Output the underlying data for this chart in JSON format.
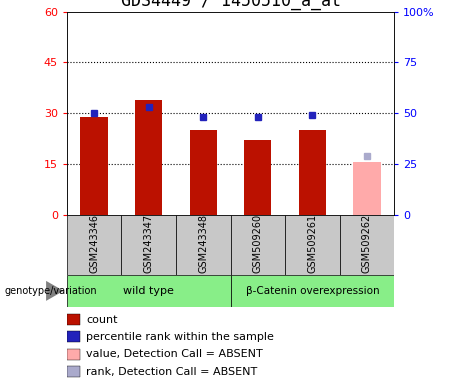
{
  "title": "GDS4449 / 1450510_a_at",
  "categories": [
    "GSM243346",
    "GSM243347",
    "GSM243348",
    "GSM509260",
    "GSM509261",
    "GSM509262"
  ],
  "count_values": [
    29.0,
    34.0,
    25.0,
    22.0,
    25.0,
    null
  ],
  "rank_values": [
    50.0,
    53.0,
    48.0,
    48.0,
    49.0,
    null
  ],
  "count_absent": [
    null,
    null,
    null,
    null,
    null,
    15.5
  ],
  "rank_absent": [
    null,
    null,
    null,
    null,
    null,
    29.0
  ],
  "bar_width": 0.5,
  "ylim_left": [
    0,
    60
  ],
  "ylim_right": [
    0,
    100
  ],
  "yticks_left": [
    0,
    15,
    30,
    45,
    60
  ],
  "ytick_labels_left": [
    "0",
    "15",
    "30",
    "45",
    "60"
  ],
  "yticks_right": [
    0,
    25,
    50,
    75,
    100
  ],
  "ytick_labels_right": [
    "0",
    "25",
    "50",
    "75",
    "100%"
  ],
  "wild_type_label": "wild type",
  "beta_label": "β-Catenin overexpression",
  "bar_color_red": "#BB1100",
  "bar_color_pink": "#FFAAAA",
  "marker_color_blue": "#2222BB",
  "marker_color_lightblue": "#AAAACC",
  "background_gray": "#C8C8C8",
  "background_green": "#88EE88",
  "title_fontsize": 12,
  "axis_fontsize": 8,
  "legend_fontsize": 8,
  "genotype_label": "genotype/variation"
}
